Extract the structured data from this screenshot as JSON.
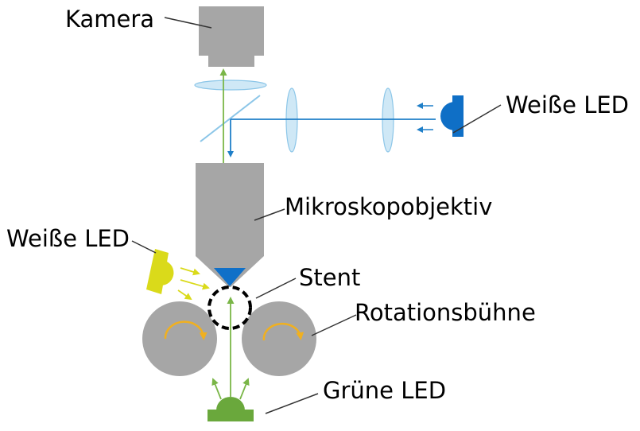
{
  "labels": {
    "camera": "Kamera",
    "white_led_top": "Weiße LED",
    "objective": "Mikroskopobjektiv",
    "white_led_left": "Weiße LED",
    "stent": "Stent",
    "rotation_stage": "Rotationsbühne",
    "green_led": "Grüne LED"
  },
  "colors": {
    "housing_gray": "#a6a6a6",
    "lens_blue": "#cfe8f6",
    "lens_outline": "#8cc6e8",
    "beam_blue": "#1f7fc8",
    "led_blue": "#0f6fc6",
    "objective_tip": "#1070c8",
    "beam_green": "#7ab648",
    "led_green": "#6aa83c",
    "led_yellow": "#dada1a",
    "arrow_orange": "#f0b020",
    "stent_outline": "#000000",
    "leader_line": "#333333"
  }
}
